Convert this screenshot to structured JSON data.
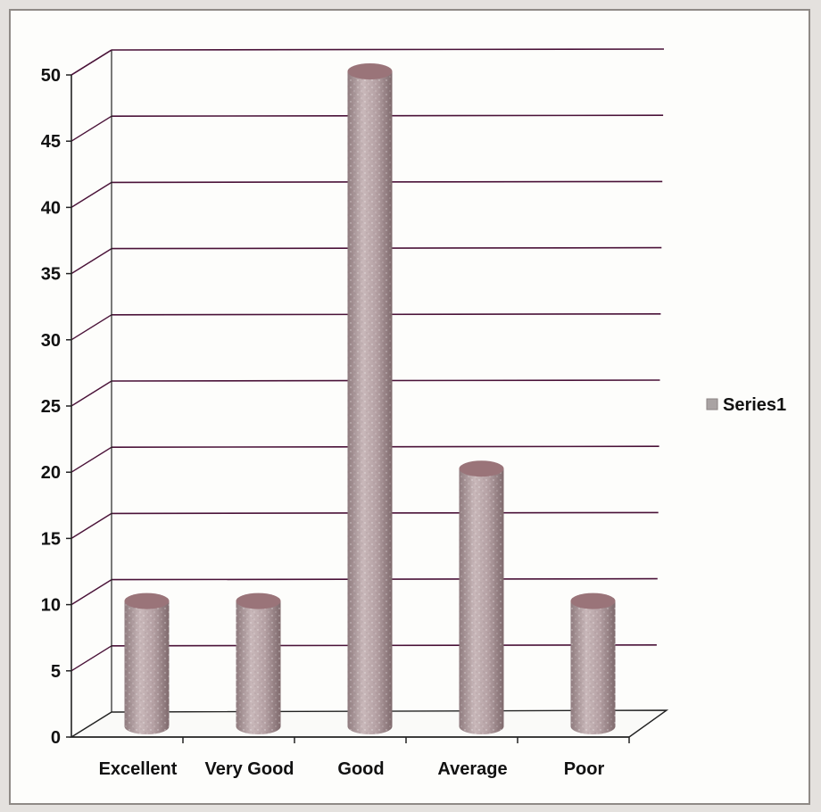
{
  "chart_data": {
    "type": "bar",
    "categories": [
      "Excellent",
      "Very Good",
      "Good",
      "Average",
      "Poor"
    ],
    "series": [
      {
        "name": "Series1",
        "values": [
          10,
          10,
          50,
          20,
          10
        ]
      }
    ],
    "ylim": [
      0,
      50
    ],
    "yticks": [
      "0",
      "5",
      "10",
      "15",
      "20",
      "25",
      "30",
      "35",
      "40",
      "45",
      "50"
    ],
    "grid": true,
    "legend": "right",
    "bar_style": "3d-cylinder",
    "colors": {
      "bar": "#b09a9d",
      "bar_top": "#9a7479",
      "grid": "#4a1238",
      "axis": "#222222"
    }
  }
}
